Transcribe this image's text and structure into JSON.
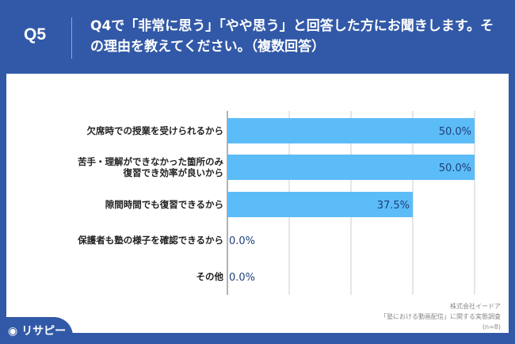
{
  "header": {
    "q": "Q5",
    "title": "Q4で「非常に思う」「やや思う」と回答した方にお聞きします。その理由を教えてください。（複数回答）"
  },
  "chart_data": {
    "type": "bar",
    "orientation": "horizontal",
    "categories": [
      "欠席時での授業を受けられるから",
      "苦手・理解ができなかった箇所のみ\n復習でき効率が良いから",
      "隙間時間でも復習できるから",
      "保護者も塾の様子を確認できるから",
      "その他"
    ],
    "values": [
      50.0,
      50.0,
      37.5,
      0.0,
      0.0
    ],
    "value_labels": [
      "50.0%",
      "50.0%",
      "37.5%",
      "0.0%",
      "0.0%"
    ],
    "xlim": [
      0,
      50
    ],
    "grid": true,
    "bar_color": "#5cbcf7"
  },
  "footer": {
    "company": "株式会社イードア",
    "survey": "「塾における動画配信」に関する実態調査",
    "n": "(n=8)"
  },
  "logo": "リサピー"
}
